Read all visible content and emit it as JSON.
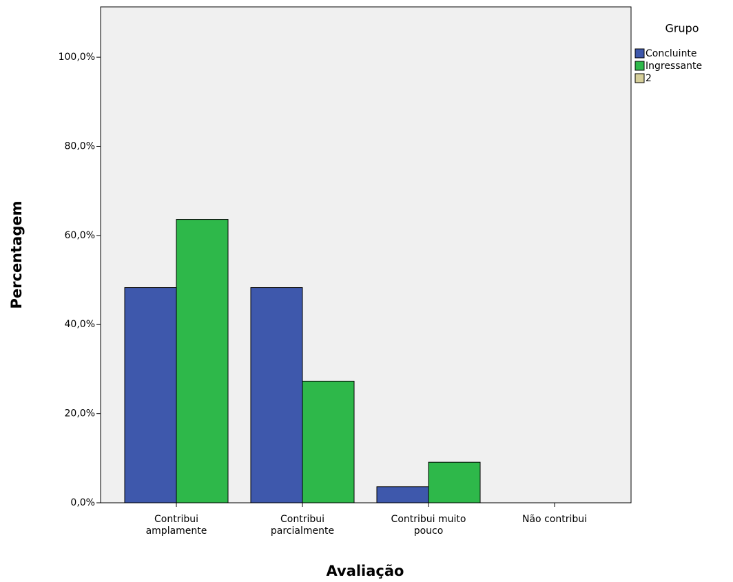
{
  "chart_data": {
    "type": "bar",
    "x_label": "Avaliação",
    "y_label": "Percentagem",
    "categories": [
      "Contribui amplamente",
      "Contribui parcialmente",
      "Contribui muito pouco",
      "Não contribui"
    ],
    "series": [
      {
        "name": "Concluinte",
        "color": "#3e58ac",
        "values": [
          48.3,
          48.3,
          3.6,
          0
        ]
      },
      {
        "name": "Ingressante",
        "color": "#2eb84a",
        "values": [
          63.6,
          27.3,
          9.1,
          0
        ]
      },
      {
        "name": "2",
        "color": "#d6cf9a",
        "values": [
          null,
          null,
          null,
          null
        ]
      }
    ],
    "legend_title": "Grupo",
    "legend_position": "right",
    "ylim": [
      0,
      111.3
    ],
    "yticks": [
      {
        "value": 0,
        "label": "0,0%"
      },
      {
        "value": 20,
        "label": "20,0%"
      },
      {
        "value": 40,
        "label": "40,0%"
      },
      {
        "value": 60,
        "label": "60,0%"
      },
      {
        "value": 80,
        "label": "80,0%"
      },
      {
        "value": 100,
        "label": "100,0%"
      }
    ]
  }
}
